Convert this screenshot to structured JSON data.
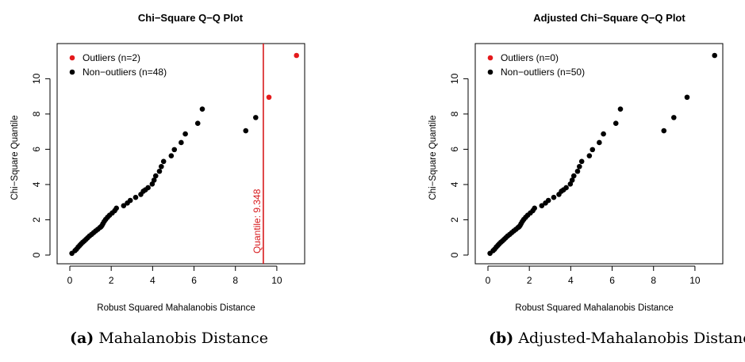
{
  "chart_data": [
    {
      "type": "scatter",
      "title": "Chi−Square Q−Q Plot",
      "xlabel": "Robust Squared Mahalanobis Distance",
      "ylabel": "Chi−Square Quantile",
      "xlim": [
        0,
        11
      ],
      "ylim": [
        0,
        11.5
      ],
      "xticks": [
        0,
        2,
        4,
        6,
        8,
        10
      ],
      "yticks": [
        0,
        2,
        4,
        6,
        8,
        10
      ],
      "legend_position": "top-left",
      "grid": false,
      "series": [
        {
          "name": "Outliers (n=2)",
          "color": "#e41a1c",
          "points": [
            [
              9.62,
              8.95
            ],
            [
              10.95,
              11.32
            ]
          ]
        },
        {
          "name": "Non−outliers (n=48)",
          "color": "#000000",
          "points": [
            [
              0.1,
              0.1
            ],
            [
              0.25,
              0.25
            ],
            [
              0.32,
              0.33
            ],
            [
              0.4,
              0.45
            ],
            [
              0.48,
              0.55
            ],
            [
              0.55,
              0.64
            ],
            [
              0.62,
              0.72
            ],
            [
              0.7,
              0.8
            ],
            [
              0.78,
              0.89
            ],
            [
              0.86,
              0.98
            ],
            [
              0.95,
              1.08
            ],
            [
              1.05,
              1.17
            ],
            [
              1.15,
              1.27
            ],
            [
              1.25,
              1.37
            ],
            [
              1.35,
              1.46
            ],
            [
              1.45,
              1.56
            ],
            [
              1.55,
              1.67
            ],
            [
              1.6,
              1.78
            ],
            [
              1.66,
              1.9
            ],
            [
              1.73,
              2.02
            ],
            [
              1.82,
              2.14
            ],
            [
              1.92,
              2.26
            ],
            [
              2.05,
              2.39
            ],
            [
              2.17,
              2.52
            ],
            [
              2.25,
              2.66
            ],
            [
              2.6,
              2.8
            ],
            [
              2.78,
              2.95
            ],
            [
              2.92,
              3.1
            ],
            [
              3.18,
              3.27
            ],
            [
              3.43,
              3.44
            ],
            [
              3.55,
              3.62
            ],
            [
              3.78,
              3.82
            ],
            [
              3.98,
              4.03
            ],
            [
              4.07,
              4.25
            ],
            [
              4.15,
              4.49
            ],
            [
              4.33,
              4.75
            ],
            [
              4.42,
              5.02
            ],
            [
              4.53,
              5.31
            ],
            [
              4.9,
              5.63
            ],
            [
              5.05,
              5.98
            ],
            [
              5.38,
              6.38
            ],
            [
              5.58,
              6.87
            ],
            [
              6.18,
              7.47
            ],
            [
              6.4,
              8.28
            ],
            [
              8.5,
              7.05
            ],
            [
              8.98,
              7.8
            ],
            [
              3.65,
              3.7
            ],
            [
              1.5,
              1.6
            ]
          ]
        }
      ],
      "annotations": [
        {
          "type": "vline",
          "x": 9.348,
          "color": "#d7191c",
          "label": "Quantile:  9.348"
        }
      ]
    },
    {
      "type": "scatter",
      "title": "Adjusted Chi−Square Q−Q Plot",
      "xlabel": "Robust Squared Mahalanobis Distance",
      "ylabel": "Chi−Square Quantile",
      "xlim": [
        0,
        11
      ],
      "ylim": [
        0,
        11.5
      ],
      "xticks": [
        0,
        2,
        4,
        6,
        8,
        10
      ],
      "yticks": [
        0,
        2,
        4,
        6,
        8,
        10
      ],
      "legend_position": "top-left",
      "grid": false,
      "series": [
        {
          "name": "Outliers (n=0)",
          "color": "#e41a1c",
          "points": []
        },
        {
          "name": "Non−outliers (n=50)",
          "color": "#000000",
          "points": [
            [
              0.1,
              0.1
            ],
            [
              0.25,
              0.25
            ],
            [
              0.32,
              0.33
            ],
            [
              0.4,
              0.45
            ],
            [
              0.48,
              0.55
            ],
            [
              0.55,
              0.64
            ],
            [
              0.62,
              0.72
            ],
            [
              0.7,
              0.8
            ],
            [
              0.78,
              0.89
            ],
            [
              0.86,
              0.98
            ],
            [
              0.95,
              1.08
            ],
            [
              1.05,
              1.17
            ],
            [
              1.15,
              1.27
            ],
            [
              1.25,
              1.37
            ],
            [
              1.35,
              1.46
            ],
            [
              1.45,
              1.56
            ],
            [
              1.55,
              1.67
            ],
            [
              1.6,
              1.78
            ],
            [
              1.66,
              1.9
            ],
            [
              1.73,
              2.02
            ],
            [
              1.82,
              2.14
            ],
            [
              1.92,
              2.26
            ],
            [
              2.05,
              2.39
            ],
            [
              2.17,
              2.52
            ],
            [
              2.25,
              2.66
            ],
            [
              2.6,
              2.8
            ],
            [
              2.78,
              2.95
            ],
            [
              2.92,
              3.1
            ],
            [
              3.18,
              3.27
            ],
            [
              3.43,
              3.44
            ],
            [
              3.55,
              3.62
            ],
            [
              3.78,
              3.82
            ],
            [
              3.98,
              4.03
            ],
            [
              4.07,
              4.25
            ],
            [
              4.15,
              4.49
            ],
            [
              4.33,
              4.75
            ],
            [
              4.42,
              5.02
            ],
            [
              4.53,
              5.31
            ],
            [
              4.9,
              5.63
            ],
            [
              5.05,
              5.98
            ],
            [
              5.38,
              6.38
            ],
            [
              5.58,
              6.87
            ],
            [
              6.18,
              7.47
            ],
            [
              6.4,
              8.28
            ],
            [
              8.5,
              7.05
            ],
            [
              8.98,
              7.8
            ],
            [
              3.65,
              3.7
            ],
            [
              1.5,
              1.6
            ],
            [
              9.62,
              8.95
            ],
            [
              10.95,
              11.32
            ]
          ]
        }
      ],
      "annotations": []
    }
  ],
  "captions": [
    {
      "tag": "(a)",
      "text": "Mahalanobis Distance"
    },
    {
      "tag": "(b)",
      "text": "Adjusted-Mahalanobis Distance"
    }
  ]
}
